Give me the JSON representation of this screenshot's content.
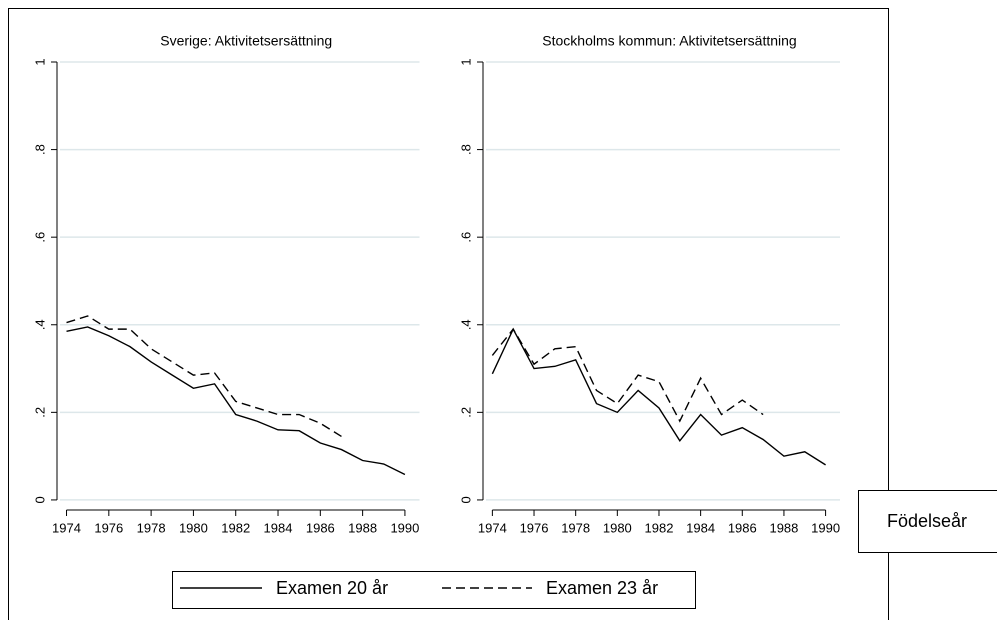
{
  "chart_data": [
    {
      "type": "line",
      "title": "Sverige: Aktivitetsersättning",
      "xlabel": "Födelseår",
      "x": [
        1974,
        1975,
        1976,
        1977,
        1978,
        1979,
        1980,
        1981,
        1982,
        1983,
        1984,
        1985,
        1986,
        1987,
        1988,
        1989,
        1990
      ],
      "series": [
        {
          "name": "Examen 20 år",
          "color": "#000000",
          "dash": false,
          "values": [
            0.385,
            0.395,
            0.375,
            0.35,
            0.315,
            0.285,
            0.255,
            0.265,
            0.195,
            0.18,
            0.16,
            0.158,
            0.13,
            0.115,
            0.09,
            0.082,
            0.058
          ]
        },
        {
          "name": "Examen 23 år",
          "color": "#000000",
          "dash": true,
          "values": [
            0.405,
            0.42,
            0.39,
            0.39,
            0.345,
            0.315,
            0.285,
            0.29,
            0.225,
            0.21,
            0.195,
            0.195,
            0.175,
            0.145,
            null,
            null,
            null
          ]
        }
      ],
      "xlim": [
        1973.55,
        1990.5
      ],
      "xticks": [
        1974,
        1976,
        1978,
        1980,
        1982,
        1984,
        1986,
        1988,
        1990
      ],
      "ylim": [
        -0.023,
        1
      ],
      "yticks": [
        0,
        {
          "value": 0.2,
          "label": ".2"
        },
        {
          "value": 0.4,
          "label": ".4"
        },
        {
          "value": 0.6,
          "label": ".6"
        },
        {
          "value": 0.8,
          "label": ".8"
        },
        1
      ],
      "grid": true
    },
    {
      "type": "line",
      "title": "Stockholms kommun: Aktivitetsersättning",
      "x": [
        1974,
        1975,
        1976,
        1977,
        1978,
        1979,
        1980,
        1981,
        1982,
        1983,
        1984,
        1985,
        1986,
        1987,
        1988,
        1989,
        1990
      ],
      "series": [
        {
          "color": "#000000",
          "dash": false,
          "values": [
            0.288,
            0.39,
            0.3,
            0.305,
            0.32,
            0.22,
            0.2,
            0.25,
            0.21,
            0.135,
            0.195,
            0.148,
            0.165,
            0.138,
            0.1,
            0.11,
            0.08
          ]
        },
        {
          "color": "#000000",
          "dash": true,
          "values": [
            0.33,
            0.39,
            0.31,
            0.345,
            0.35,
            0.25,
            0.22,
            0.285,
            0.27,
            0.18,
            0.278,
            0.195,
            0.228,
            0.195,
            null,
            null,
            null
          ]
        }
      ],
      "xlim": [
        1973.55,
        1990.5
      ],
      "xticks": [
        1974,
        1976,
        1978,
        1980,
        1982,
        1984,
        1986,
        1988,
        1990
      ],
      "ylim": [
        -0.023,
        1
      ],
      "yticks": [
        0,
        {
          "value": 0.2,
          "label": ".2"
        },
        {
          "value": 0.4,
          "label": ".4"
        },
        {
          "value": 0.6,
          "label": ".6"
        },
        {
          "value": 0.8,
          "label": ".8"
        },
        1
      ],
      "grid": true
    }
  ]
}
